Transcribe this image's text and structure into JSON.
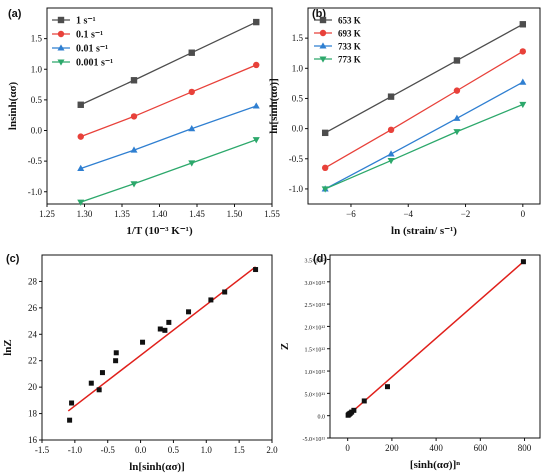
{
  "chart_data": [
    {
      "type": "line",
      "panel": "(a)",
      "xlabel": "1/T (10⁻³ K⁻¹)",
      "ylabel": "lnsinh(ασ)",
      "xlim": [
        1.25,
        1.55
      ],
      "ylim": [
        -1.2,
        2.0
      ],
      "xticks": [
        "1.25",
        "1.30",
        "1.35",
        "1.40",
        "1.45",
        "1.50",
        "1.55"
      ],
      "yticks": [
        "-1.0",
        "-0.5",
        "0.0",
        "0.5",
        "1.0",
        "1.5"
      ],
      "x": [
        1.295,
        1.366,
        1.443,
        1.529
      ],
      "legend": "top-left",
      "series": [
        {
          "name": "1 s⁻¹",
          "marker": "square",
          "color": "#4d4d4d",
          "values": [
            0.42,
            0.82,
            1.27,
            1.77
          ]
        },
        {
          "name": "0.1 s⁻¹",
          "marker": "circle",
          "color": "#e8413a",
          "values": [
            -0.1,
            0.23,
            0.63,
            1.07
          ]
        },
        {
          "name": "0.01 s⁻¹",
          "marker": "triangle-up",
          "color": "#2f7fd1",
          "values": [
            -0.62,
            -0.32,
            0.03,
            0.4
          ]
        },
        {
          "name": "0.001 s⁻¹",
          "marker": "triangle-down",
          "color": "#2ca86b",
          "values": [
            -1.17,
            -0.87,
            -0.53,
            -0.15
          ]
        }
      ]
    },
    {
      "type": "line",
      "panel": "(b)",
      "xlabel": "ln (strain/ s⁻¹)",
      "ylabel": "ln[sinh(ασ)]",
      "xlim": [
        -7.5,
        0.6
      ],
      "ylim": [
        -1.25,
        2.0
      ],
      "xticks": [
        "−6",
        "−4",
        "−2",
        "0"
      ],
      "yticks": [
        "-1.0",
        "-0.5",
        "0.0",
        "0.5",
        "1.0",
        "1.5"
      ],
      "x": [
        -6.9,
        -4.6,
        -2.3,
        0
      ],
      "legend": "top-left",
      "series": [
        {
          "name": "653 K",
          "marker": "square",
          "color": "#4d4d4d",
          "values": [
            -0.07,
            0.53,
            1.13,
            1.73
          ]
        },
        {
          "name": "693 K",
          "marker": "circle",
          "color": "#e8413a",
          "values": [
            -0.65,
            -0.02,
            0.63,
            1.28
          ]
        },
        {
          "name": "733 K",
          "marker": "triangle-up",
          "color": "#2f7fd1",
          "values": [
            -1.0,
            -0.42,
            0.17,
            0.77
          ]
        },
        {
          "name": "773 K",
          "marker": "triangle-down",
          "color": "#2ca86b",
          "values": [
            -1.0,
            -0.53,
            -0.05,
            0.4
          ]
        }
      ]
    },
    {
      "type": "scatter",
      "panel": "(c)",
      "xlabel": "ln[sinh(ασ)]",
      "ylabel": "lnZ",
      "xlim": [
        -1.5,
        2.0
      ],
      "ylim": [
        16,
        30
      ],
      "xticks": [
        "-1.5",
        "-1.0",
        "-0.5",
        "0.0",
        "0.5",
        "1.0",
        "1.5",
        "2.0"
      ],
      "yticks": [
        "16",
        "18",
        "20",
        "22",
        "24",
        "26",
        "28"
      ],
      "fit": {
        "color": "#e0201b",
        "x": [
          -1.1,
          1.75
        ],
        "y": [
          18.2,
          29.1
        ]
      },
      "points": [
        [
          -1.08,
          17.5
        ],
        [
          -1.05,
          18.8
        ],
        [
          -0.75,
          20.3
        ],
        [
          -0.63,
          19.8
        ],
        [
          -0.58,
          21.1
        ],
        [
          -0.38,
          22.0
        ],
        [
          -0.37,
          22.6
        ],
        [
          0.03,
          23.4
        ],
        [
          0.3,
          24.4
        ],
        [
          0.37,
          24.3
        ],
        [
          0.43,
          24.9
        ],
        [
          0.73,
          25.7
        ],
        [
          1.07,
          26.6
        ],
        [
          1.28,
          27.2
        ],
        [
          1.75,
          28.9
        ]
      ]
    },
    {
      "type": "scatter",
      "panel": "(d)",
      "xlabel": "[sinh(ασ)]ⁿ",
      "ylabel": "Z",
      "xlim": [
        -80,
        870
      ],
      "ylim": [
        -500000000000.0,
        3600000000000.0
      ],
      "xticks": [
        "0",
        "200",
        "400",
        "600",
        "800"
      ],
      "yticks": [
        "-5.0×10¹¹",
        "0.0",
        "5.0×10¹¹",
        "1.0×10¹²",
        "1.5×10¹²",
        "2.0×10¹²",
        "2.5×10¹²",
        "3.0×10¹²",
        "3.5×10¹²"
      ],
      "fit": {
        "color": "#e0201b",
        "x": [
          0,
          795
        ],
        "y": [
          0,
          3450000000000.0
        ]
      },
      "points": [
        [
          2,
          10000000000.0
        ],
        [
          5,
          30000000000.0
        ],
        [
          8,
          40000000000.0
        ],
        [
          12,
          55000000000.0
        ],
        [
          18,
          80000000000.0
        ],
        [
          28,
          120000000000.0
        ],
        [
          75,
          330000000000.0
        ],
        [
          180,
          650000000000.0
        ],
        [
          795,
          3450000000000.0
        ]
      ]
    }
  ]
}
